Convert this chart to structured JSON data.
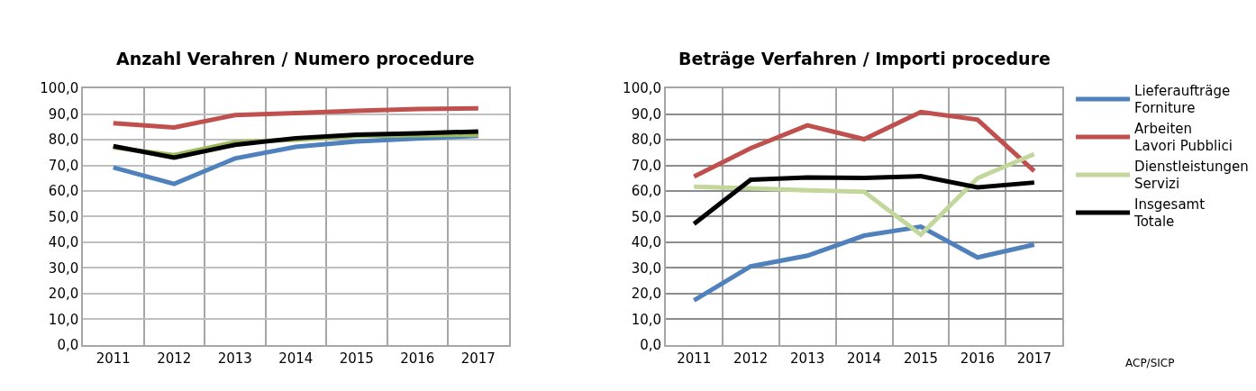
{
  "chart_data": [
    {
      "type": "line",
      "title": "Anzahl Verahren / Numero procedure",
      "categories": [
        "2011",
        "2012",
        "2013",
        "2014",
        "2015",
        "2016",
        "2017"
      ],
      "series": [
        {
          "color": "#4f81bd",
          "values": [
            69.2,
            62.8,
            72.7,
            77.2,
            79.3,
            80.5,
            81.5
          ]
        },
        {
          "color": "#c0504d",
          "values": [
            86.4,
            84.8,
            89.6,
            90.4,
            91.3,
            92.0,
            92.2
          ]
        },
        {
          "color": "#9bbb59",
          "values": [
            77.0,
            74.0,
            79.0,
            80.0,
            81.5,
            81.8,
            82.0
          ]
        },
        {
          "color": "#000000",
          "values": [
            77.5,
            73.0,
            78.0,
            80.6,
            82.0,
            82.5,
            83.2
          ]
        }
      ],
      "ylim": [
        0,
        100
      ],
      "yticks": [
        {
          "value": 0,
          "label": "0,0"
        },
        {
          "value": 10,
          "label": "10,0"
        },
        {
          "value": 20,
          "label": "20,0"
        },
        {
          "value": 30,
          "label": "30,0"
        },
        {
          "value": 40,
          "label": "40,0"
        },
        {
          "value": 50,
          "label": "50,0"
        },
        {
          "value": 60,
          "label": "60,0"
        },
        {
          "value": 70,
          "label": "70,0"
        },
        {
          "value": 80,
          "label": "80,0"
        },
        {
          "value": 90,
          "label": "90,0"
        },
        {
          "value": 100,
          "label": "100,0"
        }
      ],
      "grid": true,
      "legend": false,
      "marker": "none",
      "line_style": "solid"
    },
    {
      "type": "line",
      "title": "Beträge Verfahren / Importi procedure",
      "categories": [
        "2011",
        "2012",
        "2013",
        "2014",
        "2015",
        "2016",
        "2017"
      ],
      "series": [
        {
          "name": "Lieferaufträge\nForniture",
          "color": "#4f81bd",
          "values": [
            17.4,
            30.6,
            34.8,
            42.6,
            46.1,
            34.1,
            39.1
          ]
        },
        {
          "name": "Arbeiten\nLavori Pubblici",
          "color": "#c0504d",
          "values": [
            65.6,
            76.7,
            85.6,
            80.2,
            90.8,
            87.8,
            67.8
          ]
        },
        {
          "name": "Dienstleistungen\nServizi",
          "color": "#c3d69b",
          "values": [
            61.7,
            61.1,
            60.3,
            59.7,
            43.0,
            65.0,
            74.4
          ]
        },
        {
          "name": "Insgesamt\nTotale",
          "color": "#000000",
          "values": [
            47.2,
            64.4,
            65.3,
            65.1,
            65.8,
            61.4,
            63.3
          ]
        }
      ],
      "ylim": [
        0,
        100
      ],
      "yticks": [
        {
          "value": 0,
          "label": "0,0"
        },
        {
          "value": 10,
          "label": "10,0"
        },
        {
          "value": 20,
          "label": "20,0"
        },
        {
          "value": 30,
          "label": "30,0"
        },
        {
          "value": 40,
          "label": "40,0"
        },
        {
          "value": 50,
          "label": "50,0"
        },
        {
          "value": 60,
          "label": "60,0"
        },
        {
          "value": 70,
          "label": "70,0"
        },
        {
          "value": 80,
          "label": "80,0"
        },
        {
          "value": 90,
          "label": "90,0"
        },
        {
          "value": 100,
          "label": "100,0"
        }
      ],
      "annotations": [
        "ACP/SICP"
      ],
      "grid": true,
      "legend": "right",
      "marker": "none",
      "line_style": "solid"
    }
  ]
}
